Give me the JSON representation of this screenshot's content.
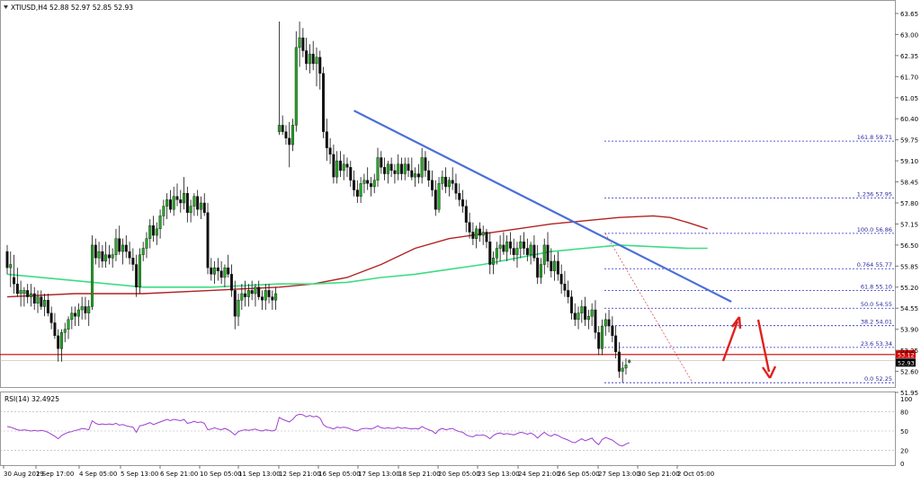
{
  "header": {
    "symbol": "XTIUSD,H4",
    "ohlc": "52.88 52.97 52.85 52.93"
  },
  "rsi_label": "RSI(14) 32.4925",
  "current_price_labels": [
    "53.12",
    "52.93"
  ],
  "colors": {
    "bull": "#22aa22",
    "bear": "#111111",
    "ma_slow": "#b22222",
    "ma_fast": "#3ddc84",
    "trendline": "#4a6fd8",
    "fib": "#2c2cc8",
    "hline": "#cc0000",
    "rsi": "#a040d0",
    "arrow": "#e0201c"
  },
  "chart_data": {
    "type": "candlestick",
    "price_axis": {
      "min": 51.95,
      "max": 63.65,
      "ticks": [
        "63.65",
        "63.00",
        "62.35",
        "61.70",
        "61.05",
        "60.40",
        "59.75",
        "59.10",
        "58.45",
        "57.80",
        "57.15",
        "56.50",
        "55.85",
        "55.20",
        "54.55",
        "53.90",
        "53.25",
        "52.60",
        "51.95"
      ]
    },
    "x_labels": [
      "30 Aug 2019",
      "2 Sep 17:00",
      "4 Sep 05:00",
      "5 Sep 13:00",
      "6 Sep 21:00",
      "10 Sep 05:00",
      "11 Sep 13:00",
      "12 Sep 21:00",
      "16 Sep 05:00",
      "17 Sep 13:00",
      "18 Sep 21:00",
      "20 Sep 05:00",
      "23 Sep 13:00",
      "24 Sep 21:00",
      "26 Sep 05:00",
      "27 Sep 13:00",
      "30 Sep 21:00",
      "2 Oct 05:00"
    ],
    "fib_levels": [
      {
        "label": "161.8 59.71",
        "value": 59.71
      },
      {
        "label": "1.236 57.95",
        "value": 57.95
      },
      {
        "label": "100.0 56.86",
        "value": 56.86
      },
      {
        "label": "0.764 55.77",
        "value": 55.77
      },
      {
        "label": "61.8 55.10",
        "value": 55.1
      },
      {
        "label": "50.0 54.55",
        "value": 54.55
      },
      {
        "label": "38.2 54.01",
        "value": 54.01
      },
      {
        "label": "23.6 53.34",
        "value": 53.34
      },
      {
        "label": "0.0 52.25",
        "value": 52.25
      }
    ],
    "horizontal_line": 53.12,
    "trendline": {
      "from": {
        "x_index": 102,
        "price": 60.65
      },
      "to": {
        "x_index": 213,
        "price": 54.75
      }
    },
    "candles": [
      [
        56.3,
        56.5,
        55.6,
        55.8
      ],
      [
        55.8,
        56.3,
        55.2,
        55.9
      ],
      [
        55.5,
        56.2,
        55.0,
        55.3
      ],
      [
        55.3,
        55.8,
        54.9,
        55.0
      ],
      [
        55.0,
        55.4,
        54.6,
        55.1
      ],
      [
        55.0,
        55.2,
        54.6,
        55.1
      ],
      [
        55.1,
        55.3,
        54.7,
        54.9
      ],
      [
        54.9,
        55.3,
        54.6,
        55.0
      ],
      [
        55.0,
        55.2,
        54.5,
        54.7
      ],
      [
        54.7,
        55.1,
        54.4,
        54.9
      ],
      [
        54.9,
        55.1,
        54.5,
        54.6
      ],
      [
        54.6,
        55.0,
        54.3,
        54.8
      ],
      [
        54.8,
        55.0,
        54.3,
        54.4
      ],
      [
        54.4,
        54.6,
        53.9,
        54.1
      ],
      [
        54.1,
        54.4,
        53.6,
        53.7
      ],
      [
        53.7,
        53.9,
        52.9,
        53.3
      ],
      [
        53.3,
        53.9,
        52.9,
        53.8
      ],
      [
        53.8,
        54.1,
        53.5,
        53.9
      ],
      [
        53.9,
        54.3,
        53.6,
        54.2
      ],
      [
        54.2,
        54.6,
        53.9,
        54.4
      ],
      [
        54.4,
        54.6,
        54.0,
        54.3
      ],
      [
        54.3,
        54.7,
        54.0,
        54.5
      ],
      [
        54.5,
        54.9,
        54.2,
        54.6
      ],
      [
        54.6,
        54.9,
        54.2,
        54.4
      ],
      [
        54.4,
        54.8,
        54.0,
        54.6
      ],
      [
        54.6,
        56.8,
        54.5,
        56.5
      ],
      [
        56.5,
        56.7,
        55.9,
        56.1
      ],
      [
        56.1,
        56.6,
        55.8,
        56.3
      ],
      [
        56.3,
        56.5,
        55.8,
        56.0
      ],
      [
        56.0,
        56.6,
        55.8,
        56.2
      ],
      [
        56.2,
        56.5,
        55.9,
        56.1
      ],
      [
        56.1,
        56.4,
        55.8,
        56.2
      ],
      [
        56.2,
        57.0,
        56.0,
        56.7
      ],
      [
        56.7,
        57.1,
        56.2,
        56.3
      ],
      [
        56.3,
        56.7,
        55.9,
        56.5
      ],
      [
        56.5,
        56.8,
        56.1,
        56.3
      ],
      [
        56.3,
        56.6,
        55.9,
        56.1
      ],
      [
        56.1,
        56.4,
        55.7,
        55.9
      ],
      [
        55.9,
        56.2,
        54.9,
        55.2
      ],
      [
        55.2,
        56.4,
        55.0,
        56.2
      ],
      [
        56.2,
        56.6,
        56.0,
        56.4
      ],
      [
        56.4,
        56.9,
        56.1,
        56.7
      ],
      [
        56.7,
        57.3,
        56.4,
        57.1
      ],
      [
        57.1,
        57.4,
        56.6,
        56.8
      ],
      [
        56.8,
        57.2,
        56.5,
        57.0
      ],
      [
        57.0,
        57.6,
        56.7,
        57.4
      ],
      [
        57.4,
        57.9,
        57.1,
        57.7
      ],
      [
        57.7,
        58.1,
        57.3,
        57.9
      ],
      [
        57.9,
        58.2,
        57.5,
        57.6
      ],
      [
        57.6,
        58.3,
        57.4,
        58.0
      ],
      [
        58.0,
        58.4,
        57.7,
        57.9
      ],
      [
        57.9,
        58.2,
        57.5,
        57.8
      ],
      [
        57.8,
        58.6,
        57.6,
        58.1
      ],
      [
        58.1,
        58.3,
        57.2,
        57.5
      ],
      [
        57.5,
        57.9,
        57.2,
        57.7
      ],
      [
        57.7,
        58.1,
        57.4,
        58.0
      ],
      [
        58.0,
        58.2,
        57.4,
        57.6
      ],
      [
        57.6,
        58.0,
        57.3,
        57.8
      ],
      [
        57.8,
        58.1,
        57.4,
        57.5
      ],
      [
        57.5,
        57.8,
        55.6,
        55.8
      ],
      [
        55.8,
        56.1,
        55.4,
        55.6
      ],
      [
        55.6,
        56.0,
        55.3,
        55.8
      ],
      [
        55.8,
        56.1,
        55.4,
        55.7
      ],
      [
        55.7,
        56.0,
        55.3,
        55.5
      ],
      [
        55.5,
        55.9,
        55.2,
        55.8
      ],
      [
        55.8,
        56.2,
        55.5,
        55.6
      ],
      [
        55.6,
        55.9,
        54.9,
        55.1
      ],
      [
        55.1,
        55.4,
        53.9,
        54.3
      ],
      [
        54.3,
        55.0,
        54.0,
        54.8
      ],
      [
        54.8,
        55.3,
        54.5,
        55.0
      ],
      [
        55.0,
        55.4,
        54.6,
        54.9
      ],
      [
        54.9,
        55.3,
        54.6,
        55.1
      ],
      [
        55.1,
        55.4,
        54.8,
        55.0
      ],
      [
        55.0,
        55.3,
        54.6,
        55.2
      ],
      [
        55.2,
        55.4,
        54.8,
        54.9
      ],
      [
        54.9,
        55.1,
        54.5,
        54.8
      ],
      [
        54.8,
        55.3,
        54.5,
        55.1
      ],
      [
        55.1,
        55.3,
        54.7,
        54.9
      ],
      [
        54.9,
        55.1,
        54.5,
        54.8
      ],
      [
        54.8,
        55.2,
        54.5,
        55.0
      ],
      [
        60.0,
        63.4,
        59.9,
        60.2
      ],
      [
        60.2,
        60.5,
        59.9,
        60.0
      ],
      [
        60.0,
        60.2,
        59.6,
        59.8
      ],
      [
        59.8,
        60.3,
        58.9,
        59.6
      ],
      [
        59.6,
        60.4,
        59.4,
        60.2
      ],
      [
        60.2,
        63.1,
        60.0,
        62.6
      ],
      [
        62.6,
        63.4,
        62.0,
        62.9
      ],
      [
        62.9,
        63.2,
        62.3,
        62.5
      ],
      [
        62.5,
        62.9,
        61.9,
        62.1
      ],
      [
        62.1,
        62.7,
        61.8,
        62.4
      ],
      [
        62.4,
        62.8,
        61.9,
        62.1
      ],
      [
        62.1,
        62.6,
        61.4,
        62.3
      ],
      [
        62.3,
        62.5,
        61.3,
        61.8
      ],
      [
        61.8,
        62.0,
        59.8,
        60.0
      ],
      [
        60.0,
        60.4,
        59.1,
        59.5
      ],
      [
        59.5,
        59.8,
        59.0,
        59.3
      ],
      [
        59.3,
        59.6,
        58.4,
        58.6
      ],
      [
        58.6,
        59.4,
        58.4,
        59.1
      ],
      [
        59.1,
        59.4,
        58.6,
        58.8
      ],
      [
        58.8,
        59.3,
        58.5,
        59.0
      ],
      [
        59.0,
        59.2,
        58.6,
        58.9
      ],
      [
        58.9,
        59.1,
        58.3,
        58.5
      ],
      [
        58.5,
        58.8,
        58.0,
        58.2
      ],
      [
        58.2,
        58.5,
        57.8,
        58.0
      ],
      [
        58.0,
        58.6,
        57.8,
        58.4
      ],
      [
        58.4,
        58.7,
        58.1,
        58.5
      ],
      [
        58.5,
        58.9,
        58.2,
        58.4
      ],
      [
        58.4,
        58.6,
        58.0,
        58.3
      ],
      [
        58.3,
        58.7,
        58.1,
        58.5
      ],
      [
        58.5,
        59.5,
        58.3,
        59.2
      ],
      [
        59.2,
        59.4,
        58.7,
        58.9
      ],
      [
        58.9,
        59.2,
        58.5,
        58.7
      ],
      [
        58.7,
        59.1,
        58.4,
        59.0
      ],
      [
        59.0,
        59.2,
        58.6,
        58.8
      ],
      [
        58.8,
        59.0,
        58.4,
        58.7
      ],
      [
        58.7,
        59.3,
        58.5,
        59.0
      ],
      [
        59.0,
        59.2,
        58.5,
        58.7
      ],
      [
        58.7,
        59.2,
        58.5,
        59.0
      ],
      [
        59.0,
        59.2,
        58.6,
        58.8
      ],
      [
        58.8,
        59.2,
        58.5,
        58.6
      ],
      [
        58.6,
        58.9,
        58.3,
        58.7
      ],
      [
        58.7,
        59.0,
        58.4,
        58.6
      ],
      [
        58.6,
        59.5,
        58.4,
        59.2
      ],
      [
        59.2,
        59.4,
        58.6,
        58.8
      ],
      [
        58.8,
        59.1,
        58.3,
        58.5
      ],
      [
        58.5,
        58.8,
        58.0,
        58.2
      ],
      [
        58.2,
        58.5,
        57.4,
        57.6
      ],
      [
        57.6,
        58.6,
        57.5,
        58.4
      ],
      [
        58.4,
        58.8,
        58.2,
        58.6
      ],
      [
        58.6,
        58.9,
        58.1,
        58.3
      ],
      [
        58.3,
        58.6,
        58.0,
        58.5
      ],
      [
        58.5,
        58.9,
        58.2,
        58.4
      ],
      [
        58.4,
        58.7,
        57.9,
        58.1
      ],
      [
        58.1,
        58.4,
        57.7,
        57.9
      ],
      [
        57.9,
        58.2,
        57.5,
        57.7
      ],
      [
        57.7,
        57.9,
        56.9,
        57.2
      ],
      [
        57.2,
        57.5,
        56.7,
        56.9
      ],
      [
        56.9,
        57.2,
        56.5,
        56.7
      ],
      [
        56.7,
        57.1,
        56.4,
        57.0
      ],
      [
        57.0,
        57.2,
        56.6,
        56.8
      ],
      [
        56.8,
        57.1,
        56.5,
        56.9
      ],
      [
        56.9,
        57.0,
        56.4,
        56.6
      ],
      [
        56.6,
        56.9,
        55.6,
        55.9
      ],
      [
        55.9,
        56.3,
        55.6,
        56.1
      ],
      [
        56.1,
        56.6,
        55.9,
        56.4
      ],
      [
        56.4,
        56.8,
        56.0,
        56.5
      ],
      [
        56.5,
        56.9,
        56.2,
        56.3
      ],
      [
        56.3,
        56.8,
        56.0,
        56.6
      ],
      [
        56.6,
        56.9,
        56.2,
        56.4
      ],
      [
        56.4,
        56.7,
        56.0,
        56.2
      ],
      [
        56.2,
        56.6,
        55.8,
        56.4
      ],
      [
        56.4,
        56.8,
        56.1,
        56.6
      ],
      [
        56.6,
        56.9,
        56.2,
        56.4
      ],
      [
        56.4,
        56.7,
        56.0,
        56.2
      ],
      [
        56.2,
        56.6,
        55.9,
        56.5
      ],
      [
        56.5,
        56.8,
        56.0,
        56.1
      ],
      [
        56.1,
        56.5,
        55.3,
        55.5
      ],
      [
        55.5,
        56.1,
        55.3,
        55.9
      ],
      [
        55.9,
        56.7,
        55.6,
        56.5
      ],
      [
        56.5,
        56.9,
        55.8,
        56.0
      ],
      [
        56.0,
        56.4,
        55.5,
        55.7
      ],
      [
        55.7,
        56.2,
        55.4,
        56.0
      ],
      [
        56.0,
        56.3,
        55.4,
        55.6
      ],
      [
        55.6,
        55.9,
        55.0,
        55.3
      ],
      [
        55.3,
        55.7,
        54.9,
        55.1
      ],
      [
        55.1,
        55.4,
        54.7,
        54.9
      ],
      [
        54.9,
        55.1,
        54.2,
        54.4
      ],
      [
        54.4,
        54.7,
        54.0,
        54.2
      ],
      [
        54.2,
        54.6,
        53.9,
        54.4
      ],
      [
        54.4,
        54.8,
        54.1,
        54.6
      ],
      [
        54.6,
        54.9,
        54.0,
        54.2
      ],
      [
        54.2,
        54.5,
        53.9,
        54.3
      ],
      [
        54.3,
        54.7,
        54.0,
        54.5
      ],
      [
        54.5,
        54.8,
        53.6,
        53.8
      ],
      [
        53.8,
        54.0,
        53.1,
        53.3
      ],
      [
        53.3,
        54.2,
        53.1,
        54.0
      ],
      [
        54.0,
        54.4,
        53.7,
        54.2
      ],
      [
        54.2,
        54.5,
        53.8,
        54.0
      ],
      [
        54.0,
        54.3,
        53.5,
        53.7
      ],
      [
        53.7,
        54.0,
        53.0,
        53.2
      ],
      [
        53.2,
        53.5,
        52.4,
        52.6
      ],
      [
        52.6,
        52.9,
        52.25,
        52.7
      ],
      [
        52.7,
        53.0,
        52.5,
        52.8
      ],
      [
        52.88,
        52.97,
        52.85,
        52.93
      ]
    ],
    "ma_slow": [
      [
        0,
        54.9
      ],
      [
        20,
        55.0
      ],
      [
        40,
        55.0
      ],
      [
        60,
        55.1
      ],
      [
        80,
        55.2
      ],
      [
        90,
        55.3
      ],
      [
        100,
        55.5
      ],
      [
        110,
        55.9
      ],
      [
        120,
        56.4
      ],
      [
        130,
        56.7
      ],
      [
        140,
        56.85
      ],
      [
        150,
        57.0
      ],
      [
        160,
        57.15
      ],
      [
        170,
        57.25
      ],
      [
        180,
        57.35
      ],
      [
        190,
        57.4
      ],
      [
        195,
        57.35
      ],
      [
        200,
        57.2
      ],
      [
        206,
        57.0
      ]
    ],
    "ma_fast": [
      [
        0,
        55.6
      ],
      [
        20,
        55.4
      ],
      [
        40,
        55.2
      ],
      [
        60,
        55.2
      ],
      [
        80,
        55.3
      ],
      [
        90,
        55.3
      ],
      [
        100,
        55.35
      ],
      [
        110,
        55.5
      ],
      [
        120,
        55.6
      ],
      [
        130,
        55.75
      ],
      [
        140,
        55.9
      ],
      [
        150,
        56.1
      ],
      [
        160,
        56.3
      ],
      [
        170,
        56.4
      ],
      [
        180,
        56.5
      ],
      [
        190,
        56.45
      ],
      [
        200,
        56.4
      ],
      [
        206,
        56.4
      ]
    ],
    "rsi": {
      "axis_ticks": [
        "100",
        "80",
        "50",
        "20",
        "0"
      ],
      "levels": [
        80,
        50,
        20
      ],
      "value": 32.4925,
      "values": [
        57,
        56,
        54,
        52,
        51,
        52,
        51,
        50,
        51,
        50,
        51,
        50,
        48,
        45,
        42,
        38,
        43,
        46,
        48,
        49,
        51,
        52,
        54,
        53,
        52,
        66,
        62,
        60,
        61,
        60,
        61,
        60,
        62,
        59,
        60,
        58,
        57,
        56,
        48,
        58,
        59,
        61,
        63,
        60,
        62,
        64,
        66,
        68,
        66,
        68,
        67,
        66,
        68,
        62,
        63,
        65,
        63,
        64,
        62,
        52,
        53,
        55,
        53,
        52,
        54,
        52,
        48,
        44,
        49,
        51,
        52,
        51,
        52,
        53,
        51,
        50,
        52,
        51,
        50,
        52,
        71,
        68,
        66,
        64,
        68,
        74,
        76,
        75,
        72,
        74,
        72,
        73,
        70,
        60,
        56,
        55,
        53,
        56,
        55,
        56,
        55,
        53,
        51,
        50,
        53,
        54,
        54,
        53,
        55,
        58,
        55,
        54,
        55,
        54,
        54,
        56,
        54,
        55,
        54,
        53,
        54,
        53,
        57,
        54,
        52,
        50,
        46,
        52,
        54,
        52,
        53,
        54,
        51,
        49,
        48,
        44,
        42,
        41,
        44,
        43,
        44,
        42,
        38,
        43,
        46,
        47,
        45,
        46,
        45,
        44,
        46,
        48,
        47,
        45,
        47,
        44,
        39,
        44,
        48,
        44,
        42,
        45,
        43,
        40,
        38,
        36,
        33,
        32,
        35,
        38,
        35,
        37,
        39,
        33,
        29,
        37,
        40,
        38,
        36,
        32,
        28,
        27,
        30,
        32
      ]
    }
  }
}
